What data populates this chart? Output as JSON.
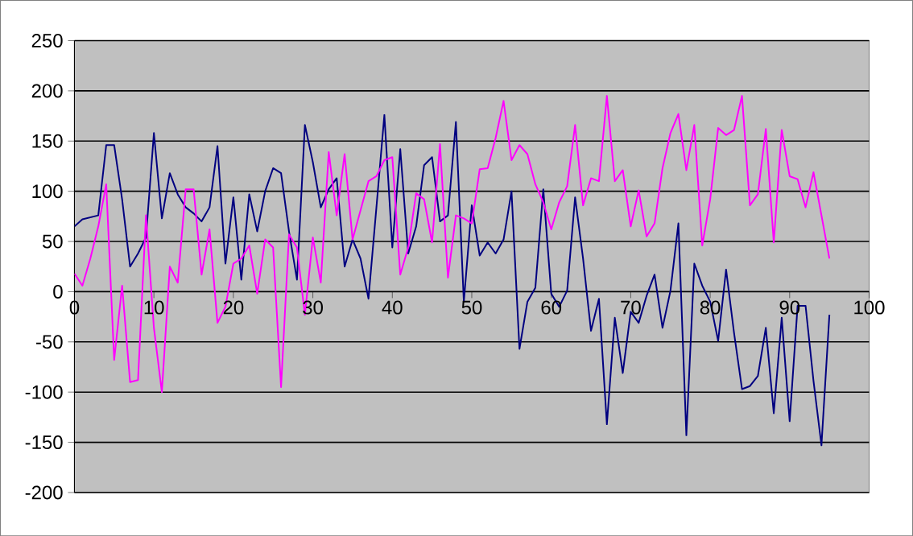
{
  "chart_data": {
    "type": "line",
    "x": [
      0,
      1,
      2,
      3,
      4,
      5,
      6,
      7,
      8,
      9,
      10,
      11,
      12,
      13,
      14,
      15,
      16,
      17,
      18,
      19,
      20,
      21,
      22,
      23,
      24,
      25,
      26,
      27,
      28,
      29,
      30,
      31,
      32,
      33,
      34,
      35,
      36,
      37,
      38,
      39,
      40,
      41,
      42,
      43,
      44,
      45,
      46,
      47,
      48,
      49,
      50,
      51,
      52,
      53,
      54,
      55,
      56,
      57,
      58,
      59,
      60,
      61,
      62,
      63,
      64,
      65,
      66,
      67,
      68,
      69,
      70,
      71,
      72,
      73,
      74,
      75,
      76,
      77,
      78,
      79,
      80,
      81,
      82,
      83,
      84,
      85,
      86,
      87,
      88,
      89,
      90,
      91,
      92,
      93,
      94,
      95
    ],
    "series": [
      {
        "color": "#000080",
        "values": [
          65,
          72,
          74,
          76,
          146,
          146,
          92,
          25,
          38,
          54,
          158,
          73,
          118,
          97,
          84,
          78,
          70,
          84,
          145,
          28,
          94,
          12,
          97,
          60,
          100,
          123,
          118,
          60,
          12,
          166,
          129,
          84,
          102,
          113,
          25,
          52,
          33,
          -7,
          84,
          176,
          44,
          142,
          38,
          65,
          126,
          134,
          70,
          76,
          169,
          -10,
          86,
          36,
          49,
          38,
          52,
          100,
          -57,
          -10,
          4,
          102,
          -2,
          -15,
          1,
          94,
          33,
          -39,
          -7,
          -132,
          -26,
          -81,
          -20,
          -31,
          -4,
          17,
          -36,
          1,
          68,
          -143,
          28,
          6,
          -10,
          -49,
          22,
          -41,
          -97,
          -94,
          -84,
          -36,
          -121,
          -26,
          -129,
          -14,
          -14,
          -89,
          -153,
          -23
        ]
      },
      {
        "color": "#ff00ff",
        "values": [
          18,
          6,
          33,
          65,
          107,
          -68,
          6,
          -90,
          -88,
          76,
          -36,
          -100,
          25,
          9,
          102,
          102,
          17,
          62,
          -31,
          -15,
          28,
          33,
          46,
          -2,
          52,
          44,
          -95,
          57,
          44,
          -23,
          54,
          9,
          139,
          76,
          137,
          52,
          81,
          110,
          115,
          131,
          134,
          17,
          44,
          98,
          92,
          49,
          147,
          14,
          76,
          73,
          68,
          122,
          123,
          153,
          190,
          131,
          146,
          137,
          107,
          89,
          62,
          89,
          105,
          166,
          86,
          113,
          110,
          195,
          110,
          121,
          65,
          101,
          55,
          68,
          123,
          158,
          177,
          121,
          166,
          46,
          92,
          163,
          156,
          161,
          195,
          86,
          97,
          162,
          49,
          161,
          115,
          112,
          84,
          119,
          76,
          33
        ]
      }
    ],
    "xlim": [
      0,
      100
    ],
    "ylim": [
      -200,
      250
    ],
    "xticks": [
      0,
      10,
      20,
      30,
      40,
      50,
      60,
      70,
      80,
      90,
      100
    ],
    "yticks": [
      -200,
      -150,
      -100,
      -50,
      0,
      50,
      100,
      150,
      200,
      250
    ],
    "grid": "y"
  }
}
